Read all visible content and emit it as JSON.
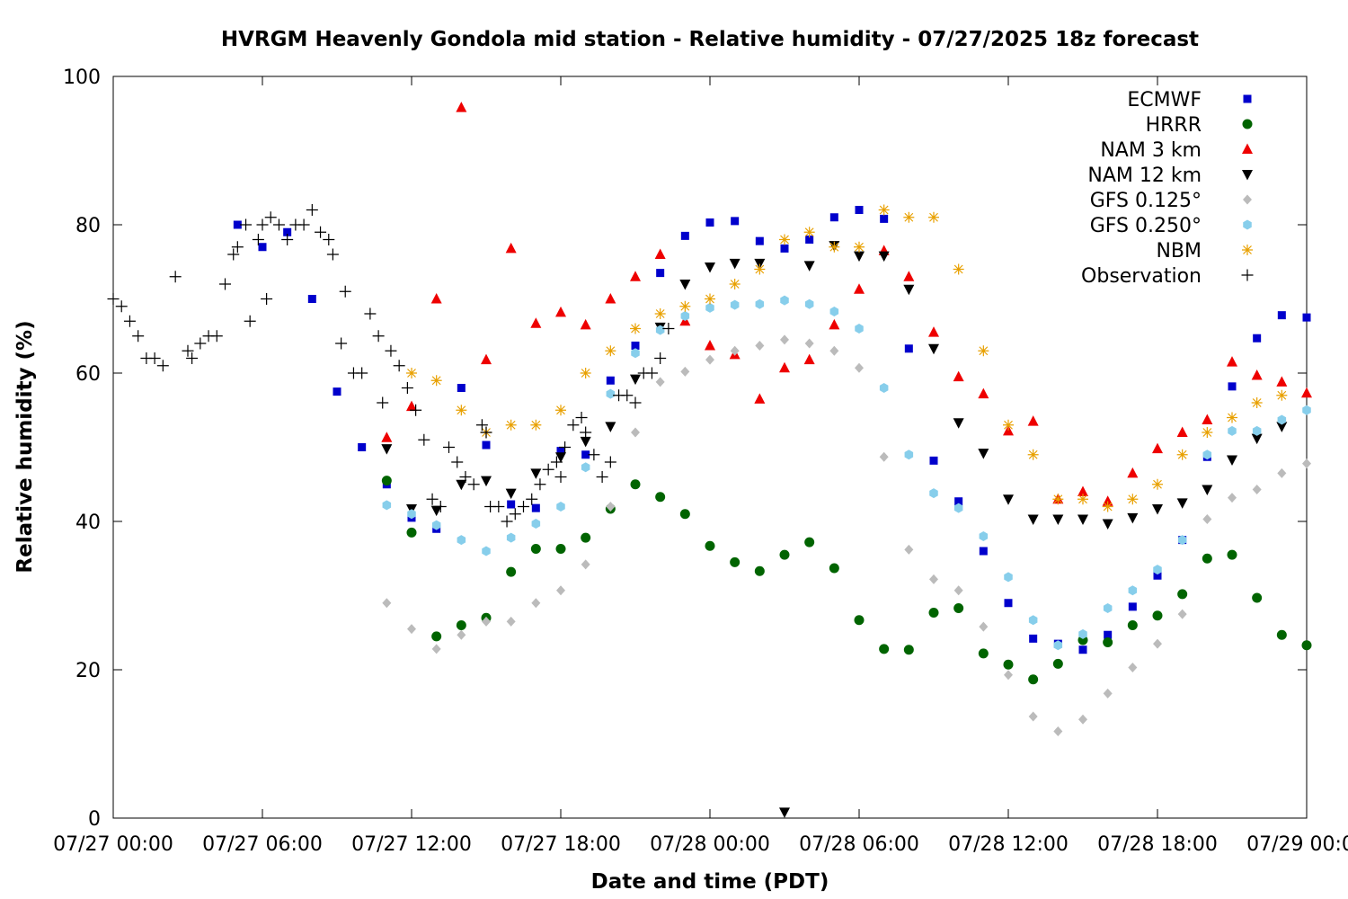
{
  "chart_data": {
    "type": "scatter",
    "title": "HVRGM Heavenly Gondola mid station - Relative humidity - 07/27/2025 18z forecast",
    "xlabel": "Date and time (PDT)",
    "ylabel": "Relative humidity (%)",
    "x_unit": "hours",
    "xlim": [
      "07/27 00:00",
      "07/29 00:00"
    ],
    "ylim": [
      0,
      100
    ],
    "x_ticks": [
      "07/27 00:00",
      "07/27 06:00",
      "07/27 12:00",
      "07/27 18:00",
      "07/28 00:00",
      "07/28 06:00",
      "07/28 12:00",
      "07/28 18:00",
      "07/29 00:00"
    ],
    "y_ticks": [
      "0",
      "20",
      "40",
      "60",
      "80",
      "100"
    ],
    "grid": false,
    "legend_position": "top-right",
    "series": [
      {
        "name": "ECMWF",
        "color": "#0000cc",
        "marker": "square",
        "x": [
          "07/27 05:00",
          "07/27 06:00",
          "07/27 07:00",
          "07/27 08:00",
          "07/27 09:00",
          "07/27 10:00",
          "07/27 11:00",
          "07/27 12:00",
          "07/27 13:00",
          "07/27 14:00",
          "07/27 15:00",
          "07/27 16:00",
          "07/27 17:00",
          "07/27 18:00",
          "07/27 19:00",
          "07/27 20:00",
          "07/27 21:00",
          "07/27 22:00",
          "07/27 23:00",
          "07/28 00:00",
          "07/28 01:00",
          "07/28 02:00",
          "07/28 03:00",
          "07/28 04:00",
          "07/28 05:00",
          "07/28 06:00",
          "07/28 07:00",
          "07/28 08:00",
          "07/28 09:00",
          "07/28 10:00",
          "07/28 11:00",
          "07/28 12:00",
          "07/28 13:00",
          "07/28 14:00",
          "07/28 15:00",
          "07/28 16:00",
          "07/28 17:00",
          "07/28 18:00",
          "07/28 19:00",
          "07/28 20:00",
          "07/28 21:00",
          "07/28 22:00",
          "07/28 23:00",
          "07/29 00:00"
        ],
        "y": [
          80,
          77,
          79,
          70,
          57.5,
          50,
          45,
          40.5,
          39,
          58,
          50.3,
          42.3,
          41.8,
          49.5,
          49,
          59,
          63.7,
          73.5,
          78.5,
          80.3,
          80.5,
          77.8,
          76.8,
          78,
          81,
          82,
          80.8,
          63.3,
          48.2,
          42.7,
          36,
          29,
          24.2,
          23.5,
          22.7,
          24.7,
          28.5,
          32.7,
          37.5,
          48.7,
          58.2,
          64.7,
          67.8,
          67.5
        ]
      },
      {
        "name": "HRRR",
        "color": "#006400",
        "marker": "circle",
        "x": [
          "07/27 11:00",
          "07/27 12:00",
          "07/27 13:00",
          "07/27 14:00",
          "07/27 15:00",
          "07/27 16:00",
          "07/27 17:00",
          "07/27 18:00",
          "07/27 19:00",
          "07/27 20:00",
          "07/27 21:00",
          "07/27 22:00",
          "07/27 23:00",
          "07/28 00:00",
          "07/28 01:00",
          "07/28 02:00",
          "07/28 03:00",
          "07/28 04:00",
          "07/28 05:00",
          "07/28 06:00",
          "07/28 07:00",
          "07/28 08:00",
          "07/28 09:00",
          "07/28 10:00",
          "07/28 11:00",
          "07/28 12:00",
          "07/28 13:00",
          "07/28 14:00",
          "07/28 15:00",
          "07/28 16:00",
          "07/28 17:00",
          "07/28 18:00",
          "07/28 19:00",
          "07/28 20:00",
          "07/28 21:00",
          "07/28 22:00",
          "07/28 23:00",
          "07/29 00:00"
        ],
        "y": [
          45.5,
          38.5,
          24.5,
          26,
          27,
          33.2,
          36.3,
          36.3,
          37.8,
          41.7,
          45,
          43.3,
          41,
          36.7,
          34.5,
          33.3,
          35.5,
          37.2,
          33.7,
          26.7,
          22.8,
          22.7,
          27.7,
          28.3,
          22.2,
          20.7,
          18.7,
          20.8,
          24,
          23.7,
          26,
          27.3,
          30.2,
          35,
          35.5,
          29.7,
          24.7,
          23.3
        ]
      },
      {
        "name": "NAM 3 km",
        "color": "#ee0000",
        "marker": "triangle-up",
        "x": [
          "07/27 11:00",
          "07/27 12:00",
          "07/27 13:00",
          "07/27 14:00",
          "07/27 15:00",
          "07/27 16:00",
          "07/27 17:00",
          "07/27 18:00",
          "07/27 19:00",
          "07/27 20:00",
          "07/27 21:00",
          "07/27 22:00",
          "07/27 23:00",
          "07/28 00:00",
          "07/28 01:00",
          "07/28 02:00",
          "07/28 03:00",
          "07/28 04:00",
          "07/28 05:00",
          "07/28 06:00",
          "07/28 07:00",
          "07/28 08:00",
          "07/28 09:00",
          "07/28 10:00",
          "07/28 11:00",
          "07/28 12:00",
          "07/28 13:00",
          "07/28 14:00",
          "07/28 15:00",
          "07/28 16:00",
          "07/28 17:00",
          "07/28 18:00",
          "07/28 19:00",
          "07/28 20:00",
          "07/28 21:00",
          "07/28 22:00",
          "07/28 23:00",
          "07/29 00:00"
        ],
        "y": [
          51.3,
          55.5,
          70,
          95.8,
          61.8,
          76.8,
          66.7,
          68.2,
          66.5,
          70,
          73,
          76,
          67,
          63.7,
          62.5,
          56.5,
          60.7,
          61.8,
          66.5,
          71.3,
          76.5,
          73,
          65.5,
          59.5,
          57.2,
          52.2,
          53.5,
          43,
          44,
          42.7,
          46.5,
          49.8,
          52,
          53.7,
          61.5,
          59.7,
          58.8,
          57.3
        ]
      },
      {
        "name": "NAM 12 km",
        "color": "#000000",
        "marker": "triangle-down",
        "x": [
          "07/27 11:00",
          "07/27 12:00",
          "07/27 13:00",
          "07/27 14:00",
          "07/27 15:00",
          "07/27 16:00",
          "07/27 17:00",
          "07/27 18:00",
          "07/27 19:00",
          "07/27 20:00",
          "07/27 21:00",
          "07/27 22:00",
          "07/27 23:00",
          "07/28 00:00",
          "07/28 01:00",
          "07/28 02:00",
          "07/28 03:00",
          "07/28 04:00",
          "07/28 05:00",
          "07/28 06:00",
          "07/28 07:00",
          "07/28 08:00",
          "07/28 09:00",
          "07/28 10:00",
          "07/28 11:00",
          "07/28 12:00",
          "07/28 13:00",
          "07/28 14:00",
          "07/28 15:00",
          "07/28 16:00",
          "07/28 17:00",
          "07/28 18:00",
          "07/28 19:00",
          "07/28 20:00",
          "07/28 21:00",
          "07/28 22:00",
          "07/28 23:00"
        ],
        "y": [
          49.8,
          41.7,
          41.5,
          45,
          45.5,
          43.8,
          46.5,
          48.7,
          50.8,
          52.8,
          59.2,
          66.2,
          72,
          74.3,
          74.8,
          74.8,
          0.8,
          74.5,
          77.2,
          75.8,
          75.8,
          71.3,
          63.3,
          53.3,
          49.2,
          43,
          40.3,
          40.3,
          40.3,
          39.7,
          40.5,
          41.7,
          42.5,
          44.3,
          48.3,
          51.2,
          52.8
        ]
      },
      {
        "name": "GFS 0.125°",
        "color": "#bbbbbb",
        "marker": "diamond",
        "x": [
          "07/27 11:00",
          "07/27 12:00",
          "07/27 13:00",
          "07/27 14:00",
          "07/27 15:00",
          "07/27 16:00",
          "07/27 17:00",
          "07/27 18:00",
          "07/27 19:00",
          "07/27 20:00",
          "07/27 21:00",
          "07/27 22:00",
          "07/27 23:00",
          "07/28 00:00",
          "07/28 01:00",
          "07/28 02:00",
          "07/28 03:00",
          "07/28 04:00",
          "07/28 05:00",
          "07/28 06:00",
          "07/28 07:00",
          "07/28 08:00",
          "07/28 09:00",
          "07/28 10:00",
          "07/28 11:00",
          "07/28 12:00",
          "07/28 13:00",
          "07/28 14:00",
          "07/28 15:00",
          "07/28 16:00",
          "07/28 17:00",
          "07/28 18:00",
          "07/28 19:00",
          "07/28 20:00",
          "07/28 21:00",
          "07/28 22:00",
          "07/28 23:00",
          "07/29 00:00"
        ],
        "y": [
          29,
          25.5,
          22.8,
          24.7,
          26.5,
          26.5,
          29,
          30.7,
          34.2,
          42,
          52,
          58.8,
          60.2,
          61.8,
          63,
          63.7,
          64.5,
          64,
          63,
          60.7,
          48.7,
          36.2,
          32.2,
          30.7,
          25.8,
          19.3,
          13.7,
          11.7,
          13.3,
          16.8,
          20.3,
          23.5,
          27.5,
          40.3,
          43.2,
          44.3,
          46.5,
          47.8
        ]
      },
      {
        "name": "GFS 0.250°",
        "color": "#87ceeb",
        "marker": "hexagon",
        "x": [
          "07/27 11:00",
          "07/27 12:00",
          "07/27 13:00",
          "07/27 14:00",
          "07/27 15:00",
          "07/27 16:00",
          "07/27 17:00",
          "07/27 18:00",
          "07/27 19:00",
          "07/27 20:00",
          "07/27 21:00",
          "07/27 22:00",
          "07/27 23:00",
          "07/28 00:00",
          "07/28 01:00",
          "07/28 02:00",
          "07/28 03:00",
          "07/28 04:00",
          "07/28 05:00",
          "07/28 06:00",
          "07/28 07:00",
          "07/28 08:00",
          "07/28 09:00",
          "07/28 10:00",
          "07/28 11:00",
          "07/28 12:00",
          "07/28 13:00",
          "07/28 14:00",
          "07/28 15:00",
          "07/28 16:00",
          "07/28 17:00",
          "07/28 18:00",
          "07/28 19:00",
          "07/28 20:00",
          "07/28 21:00",
          "07/28 22:00",
          "07/28 23:00",
          "07/29 00:00"
        ],
        "y": [
          42.2,
          41,
          39.5,
          37.5,
          36,
          37.8,
          39.7,
          42,
          47.3,
          57.2,
          62.7,
          65.8,
          67.7,
          68.8,
          69.2,
          69.3,
          69.8,
          69.3,
          68.3,
          66,
          58,
          49,
          43.8,
          41.8,
          38,
          32.5,
          26.7,
          23.3,
          24.8,
          28.3,
          30.7,
          33.5,
          37.5,
          49,
          52.2,
          52.2,
          53.7,
          55
        ]
      },
      {
        "name": "NBM",
        "color": "#e8a000",
        "marker": "asterisk",
        "x": [
          "07/27 12:00",
          "07/27 13:00",
          "07/27 14:00",
          "07/27 15:00",
          "07/27 16:00",
          "07/27 17:00",
          "07/27 18:00",
          "07/27 19:00",
          "07/27 20:00",
          "07/27 21:00",
          "07/27 22:00",
          "07/27 23:00",
          "07/28 00:00",
          "07/28 01:00",
          "07/28 02:00",
          "07/28 03:00",
          "07/28 04:00",
          "07/28 05:00",
          "07/28 06:00",
          "07/28 07:00",
          "07/28 08:00",
          "07/28 09:00",
          "07/28 10:00",
          "07/28 11:00",
          "07/28 12:00",
          "07/28 13:00",
          "07/28 14:00",
          "07/28 15:00",
          "07/28 16:00",
          "07/28 17:00",
          "07/28 18:00",
          "07/28 19:00",
          "07/28 20:00",
          "07/28 21:00",
          "07/28 22:00",
          "07/28 23:00"
        ],
        "y": [
          60,
          59,
          55,
          52,
          53,
          53,
          55,
          60,
          63,
          66,
          68,
          69,
          70,
          72,
          74,
          78,
          79,
          77,
          77,
          82,
          81,
          81,
          74,
          63,
          53,
          49,
          43,
          43,
          42,
          43,
          45,
          49,
          52,
          54,
          56,
          57
        ]
      },
      {
        "name": "Observation",
        "color": "#000000",
        "marker": "plus",
        "x": [
          "07/27 00:00",
          "07/27 00:20",
          "07/27 00:40",
          "07/27 01:00",
          "07/27 01:20",
          "07/27 01:40",
          "07/27 02:00",
          "07/27 02:30",
          "07/27 03:00",
          "07/27 03:10",
          "07/27 03:30",
          "07/27 03:50",
          "07/27 04:10",
          "07/27 04:30",
          "07/27 04:50",
          "07/27 05:00",
          "07/27 05:20",
          "07/27 05:30",
          "07/27 05:50",
          "07/27 06:00",
          "07/27 06:10",
          "07/27 06:20",
          "07/27 06:40",
          "07/27 07:00",
          "07/27 07:20",
          "07/27 07:40",
          "07/27 08:00",
          "07/27 08:20",
          "07/27 08:40",
          "07/27 08:50",
          "07/27 09:10",
          "07/27 09:20",
          "07/27 09:40",
          "07/27 10:00",
          "07/27 10:20",
          "07/27 10:40",
          "07/27 10:50",
          "07/27 11:10",
          "07/27 11:30",
          "07/27 11:50",
          "07/27 12:10",
          "07/27 12:30",
          "07/27 12:50",
          "07/27 13:10",
          "07/27 13:30",
          "07/27 13:50",
          "07/27 14:10",
          "07/27 14:30",
          "07/27 14:50",
          "07/27 15:00",
          "07/27 15:10",
          "07/27 15:30",
          "07/27 15:50",
          "07/27 16:10",
          "07/27 16:30",
          "07/27 16:50",
          "07/27 17:10",
          "07/27 17:30",
          "07/27 17:50",
          "07/27 18:00",
          "07/27 18:10",
          "07/27 18:30",
          "07/27 18:50",
          "07/27 19:00",
          "07/27 19:20",
          "07/27 19:40",
          "07/27 20:00",
          "07/27 20:20",
          "07/27 20:40",
          "07/27 21:00",
          "07/27 21:20",
          "07/27 21:40",
          "07/27 22:00",
          "07/27 22:20"
        ],
        "y": [
          70,
          69,
          67,
          65,
          62,
          62,
          61,
          73,
          63,
          62,
          64,
          65,
          65,
          72,
          76,
          77,
          80,
          67,
          78,
          80,
          70,
          81,
          80,
          78,
          80,
          80,
          82,
          79,
          78,
          76,
          64,
          71,
          60,
          60,
          68,
          65,
          56,
          63,
          61,
          58,
          55,
          51,
          43,
          42,
          50,
          48,
          46,
          45,
          53,
          52,
          42,
          42,
          40,
          41,
          42,
          43,
          45,
          47,
          48,
          46,
          50,
          53,
          54,
          52,
          49,
          46,
          48,
          57,
          57,
          56,
          60,
          60,
          62,
          66
        ]
      }
    ]
  }
}
